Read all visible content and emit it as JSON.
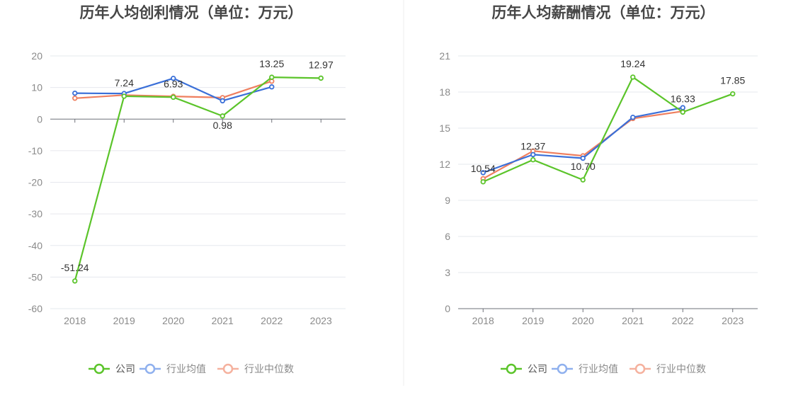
{
  "colors": {
    "company": "#5bc42a",
    "industry_avg": "#3a6fd8",
    "industry_median": "#ef7f5f",
    "legend_avg": "#8fb0ee",
    "legend_median": "#f5b19e"
  },
  "legend": {
    "company": "公司",
    "industry_avg": "行业均值",
    "industry_median": "行业中位数"
  },
  "chart_data": [
    {
      "type": "line",
      "title": "历年人均创利情况（单位：万元）",
      "categories": [
        "2018",
        "2019",
        "2020",
        "2021",
        "2022",
        "2023"
      ],
      "ylim": [
        -60,
        20
      ],
      "yticks": [
        20,
        10,
        0,
        -10,
        -20,
        -30,
        -40,
        -50,
        -60
      ],
      "series": [
        {
          "name": "公司",
          "key": "company",
          "values": [
            -51.24,
            7.24,
            6.93,
            0.98,
            13.25,
            12.97
          ],
          "labels": [
            "-51.24",
            "7.24",
            "6.93",
            "0.98",
            "13.25",
            "12.97"
          ]
        },
        {
          "name": "行业均值",
          "key": "industry_avg",
          "values": [
            8.2,
            8.1,
            12.9,
            5.8,
            10.2,
            null
          ]
        },
        {
          "name": "行业中位数",
          "key": "industry_median",
          "values": [
            6.6,
            7.6,
            7.2,
            6.8,
            12.0,
            null
          ]
        }
      ]
    },
    {
      "type": "line",
      "title": "历年人均薪酬情况（单位：万元）",
      "categories": [
        "2018",
        "2019",
        "2020",
        "2021",
        "2022",
        "2023"
      ],
      "ylim": [
        0,
        21
      ],
      "yticks": [
        21,
        18,
        15,
        12,
        9,
        6,
        3,
        0
      ],
      "series": [
        {
          "name": "公司",
          "key": "company",
          "values": [
            10.54,
            12.37,
            10.7,
            19.24,
            16.33,
            17.85
          ],
          "labels": [
            "10.54",
            "12.37",
            "10.70",
            "19.24",
            "16.33",
            "17.85"
          ]
        },
        {
          "name": "行业均值",
          "key": "industry_avg",
          "values": [
            11.3,
            12.8,
            12.5,
            15.9,
            16.7,
            null
          ]
        },
        {
          "name": "行业中位数",
          "key": "industry_median",
          "values": [
            10.8,
            13.1,
            12.7,
            15.8,
            16.4,
            null
          ]
        }
      ]
    }
  ]
}
